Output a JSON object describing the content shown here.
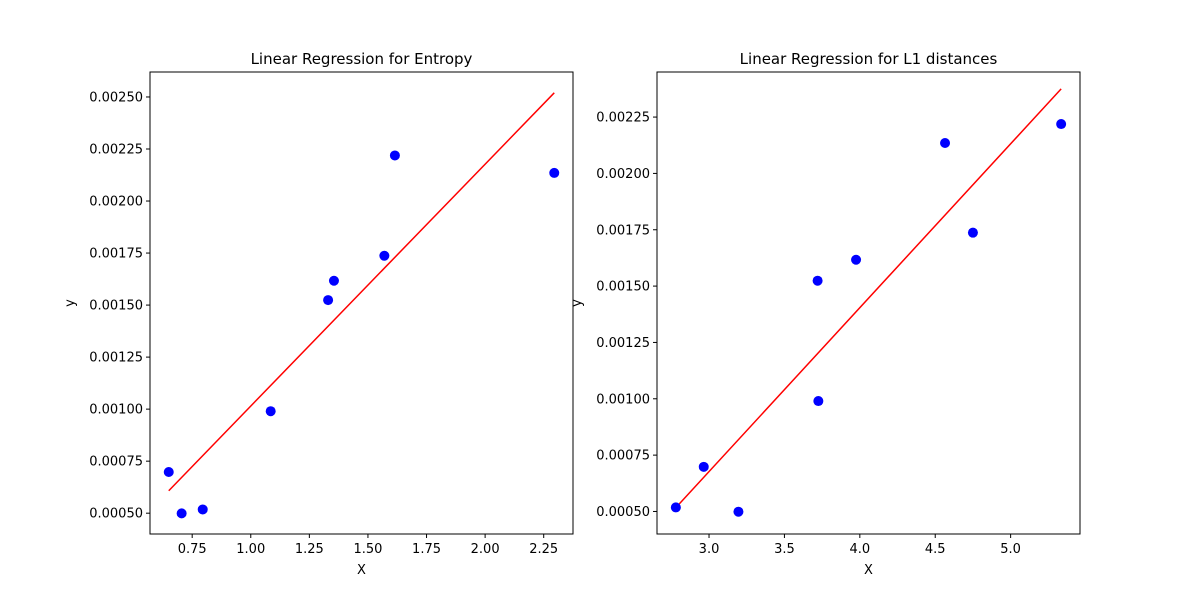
{
  "chart_data": [
    {
      "type": "scatter",
      "title": "Linear Regression for Entropy",
      "xlabel": "X",
      "ylabel": "y",
      "xlim": [
        0.57,
        2.375
      ],
      "ylim": [
        0.0004,
        0.00262
      ],
      "xticks": [
        "0.75",
        "1.00",
        "1.25",
        "1.50",
        "1.75",
        "2.00",
        "2.25"
      ],
      "xtick_values": [
        0.75,
        1.0,
        1.25,
        1.5,
        1.75,
        2.0,
        2.25
      ],
      "yticks": [
        "0.00050",
        "0.00075",
        "0.00100",
        "0.00125",
        "0.00150",
        "0.00175",
        "0.00200",
        "0.00225",
        "0.00250"
      ],
      "ytick_values": [
        0.0005,
        0.00075,
        0.001,
        0.00125,
        0.0015,
        0.00175,
        0.002,
        0.00225,
        0.0025
      ],
      "grid": false,
      "points": {
        "color": "#0000ff",
        "x": [
          0.65,
          0.705,
          0.795,
          1.085,
          1.33,
          1.355,
          1.57,
          1.615,
          2.295
        ],
        "y": [
          0.000698,
          0.000499,
          0.000518,
          0.00099,
          0.001524,
          0.001617,
          0.001737,
          0.002219,
          0.002135
        ]
      },
      "fit": {
        "color": "#ff0000",
        "x": [
          0.65,
          2.295
        ],
        "y": [
          0.000608,
          0.00252
        ]
      }
    },
    {
      "type": "scatter",
      "title": "Linear Regression for L1 distances",
      "xlabel": "X",
      "ylabel": "y",
      "xlim": [
        2.655,
        5.46
      ],
      "ylim": [
        0.0004,
        0.00245
      ],
      "xticks": [
        "3.0",
        "3.5",
        "4.0",
        "4.5",
        "5.0"
      ],
      "xtick_values": [
        3.0,
        3.5,
        4.0,
        4.5,
        5.0
      ],
      "yticks": [
        "0.00050",
        "0.00075",
        "0.00100",
        "0.00125",
        "0.00150",
        "0.00175",
        "0.00200",
        "0.00225"
      ],
      "ytick_values": [
        0.0005,
        0.00075,
        0.001,
        0.00125,
        0.0015,
        0.00175,
        0.002,
        0.00225
      ],
      "grid": false,
      "points": {
        "color": "#0000ff",
        "x": [
          2.78,
          2.965,
          3.195,
          3.72,
          3.725,
          3.975,
          4.565,
          4.75,
          5.335
        ],
        "y": [
          0.000518,
          0.000698,
          0.000499,
          0.001524,
          0.00099,
          0.001617,
          0.002135,
          0.001737,
          0.002219
        ]
      },
      "fit": {
        "color": "#ff0000",
        "x": [
          2.78,
          5.335
        ],
        "y": [
          0.000517,
          0.002375
        ]
      }
    }
  ]
}
